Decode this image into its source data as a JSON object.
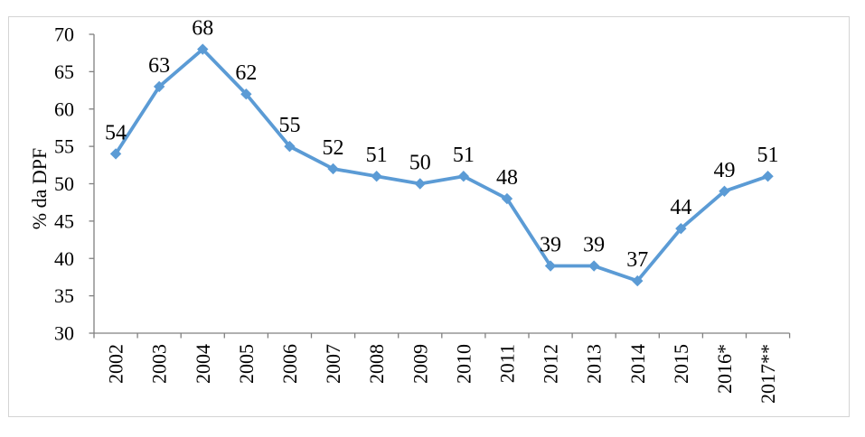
{
  "chart_data": {
    "type": "line",
    "title": "",
    "xlabel": "",
    "ylabel": "% da DPF",
    "categories": [
      "2002",
      "2003",
      "2004",
      "2005",
      "2006",
      "2007",
      "2008",
      "2009",
      "2010",
      "2011",
      "2012",
      "2013",
      "2014",
      "2015",
      "2016*",
      "2017**"
    ],
    "series": [
      {
        "name": "% da DPF",
        "values": [
          54,
          63,
          68,
          62,
          55,
          52,
          51,
          50,
          51,
          48,
          39,
          39,
          37,
          44,
          49,
          51
        ]
      }
    ],
    "data_labels": [
      "54",
      "63",
      "68",
      "62",
      "55",
      "52",
      "51",
      "50",
      "51",
      "48",
      "39",
      "39",
      "37",
      "44",
      "49",
      "51"
    ],
    "ylim": [
      30,
      70
    ],
    "yticks": [
      30,
      35,
      40,
      45,
      50,
      55,
      60,
      65,
      70
    ],
    "ytick_step": 5,
    "grid": false,
    "legend_position": "none",
    "marker": "diamond",
    "x_tick_label_rotation_deg": -90,
    "colors": {
      "line": "#5B9BD5",
      "marker": "#5B9BD5",
      "axis": "#808080",
      "text": "#000000",
      "frame_border": "#d4d4d4",
      "background": "#ffffff"
    }
  }
}
